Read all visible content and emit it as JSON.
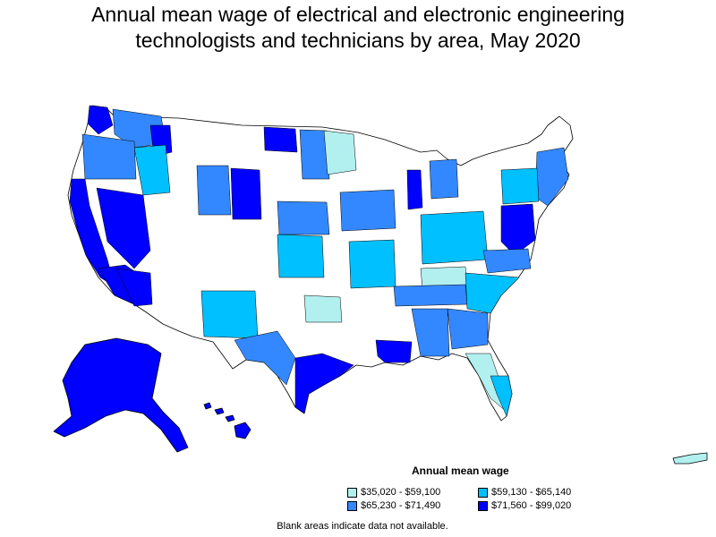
{
  "title_line1": "Annual mean wage of electrical and electronic engineering",
  "title_line2": "technologists and technicians by area, May 2020",
  "legend": {
    "title": "Annual mean wage",
    "items": [
      {
        "label": "$35,020 - $59,100",
        "color": "#b2f0f0"
      },
      {
        "label": "$59,130 - $65,140",
        "color": "#00c0ff"
      },
      {
        "label": "$65,230 - $71,490",
        "color": "#3388ff"
      },
      {
        "label": "$71,560 - $99,020",
        "color": "#0000ff"
      }
    ]
  },
  "note": "Blank areas indicate data not available.",
  "colors": {
    "blank": "#ffffff",
    "border": "#000000"
  }
}
